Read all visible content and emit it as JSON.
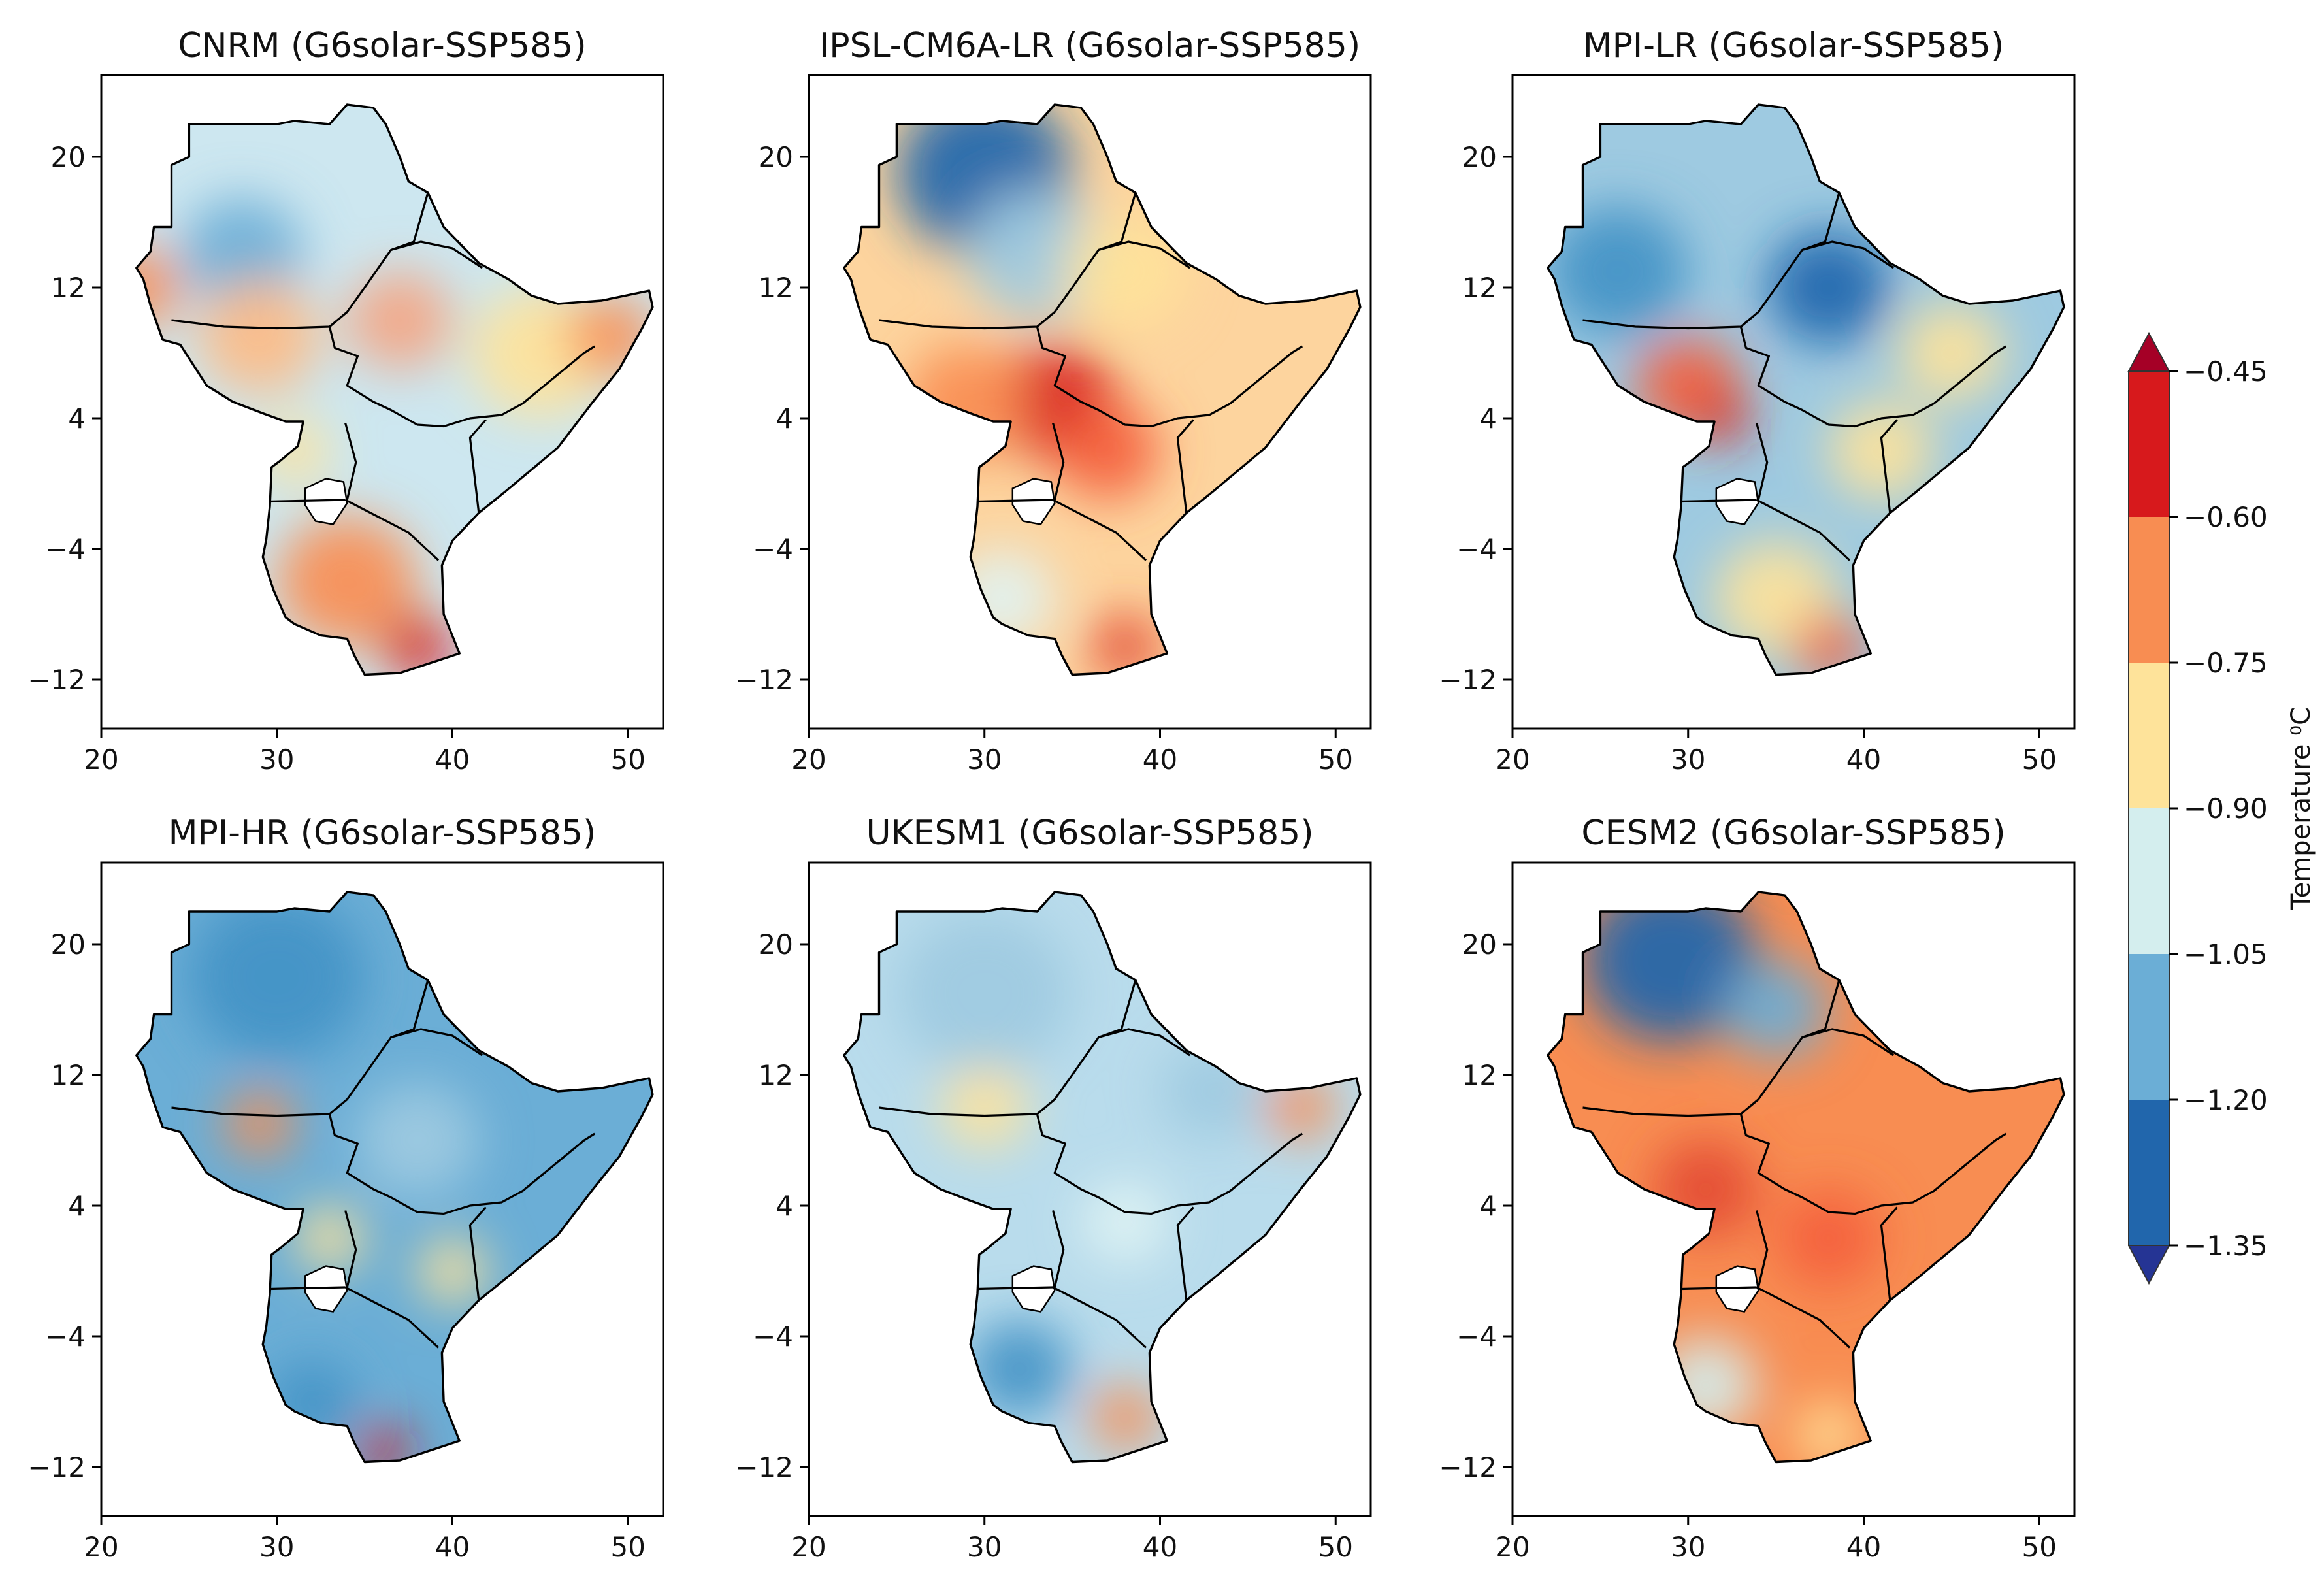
{
  "figure": {
    "variable": "Temperature",
    "unit_label": "Temperature ⁰C",
    "x_ticks": [
      20,
      30,
      40,
      50
    ],
    "y_ticks": [
      20,
      12,
      4,
      -4,
      -12
    ],
    "xlim": [
      20,
      52
    ],
    "ylim": [
      -15,
      25
    ]
  },
  "colorbar": {
    "label": "Temperature ⁰C",
    "levels": [
      -1.35,
      -1.2,
      -1.05,
      -0.9,
      -0.75,
      -0.6,
      -0.45
    ],
    "level_labels": [
      "−1.35",
      "−1.20",
      "−1.05",
      "−0.90",
      "−0.75",
      "−0.60",
      "−0.45"
    ],
    "colors": [
      "#2166ac",
      "#6baed6",
      "#d4eeee",
      "#fee39a",
      "#f88d52",
      "#d7191c"
    ],
    "extend_low_color": "#253494",
    "extend_high_color": "#a50026"
  },
  "chart_data": [
    {
      "type": "heatmap",
      "title": "CNRM (G6solar-SSP585)",
      "xlim": [
        20,
        52
      ],
      "ylim": [
        -15,
        25
      ],
      "xticks": [
        "20",
        "30",
        "40",
        "50"
      ],
      "yticks": [
        "20",
        "12",
        "4",
        "−4",
        "−12"
      ],
      "base_color": "#cde7f0",
      "blobs": [
        {
          "lon": 28,
          "lat": 14,
          "r": 3.5,
          "color": "#6baed6"
        },
        {
          "lon": 22,
          "lat": 12,
          "r": 2.5,
          "color": "#f88d52"
        },
        {
          "lon": 29,
          "lat": 9,
          "r": 3.5,
          "color": "#fdbb84"
        },
        {
          "lon": 37,
          "lat": 10,
          "r": 3,
          "color": "#f4a582"
        },
        {
          "lon": 45,
          "lat": 8,
          "r": 4,
          "color": "#fee39a"
        },
        {
          "lon": 49,
          "lat": 9,
          "r": 2.5,
          "color": "#f88d52"
        },
        {
          "lon": 34,
          "lat": -6,
          "r": 4,
          "color": "#f88d52"
        },
        {
          "lon": 38,
          "lat": -10,
          "r": 2,
          "color": "#d7191c"
        },
        {
          "lon": 31,
          "lat": 2,
          "r": 2,
          "color": "#fee39a"
        }
      ]
    },
    {
      "type": "heatmap",
      "title": "IPSL-CM6A-LR (G6solar-SSP585)",
      "xlim": [
        20,
        52
      ],
      "ylim": [
        -15,
        25
      ],
      "xticks": [
        "20",
        "30",
        "40",
        "50"
      ],
      "yticks": [
        "20",
        "12",
        "4",
        "−4",
        "−12"
      ],
      "base_color": "#fdd49e",
      "blobs": [
        {
          "lon": 30,
          "lat": 19,
          "r": 5,
          "color": "#2166ac"
        },
        {
          "lon": 33,
          "lat": 14,
          "r": 4,
          "color": "#9ecae1"
        },
        {
          "lon": 38,
          "lat": 13,
          "r": 3.5,
          "color": "#fee39a"
        },
        {
          "lon": 34,
          "lat": 5,
          "r": 3.5,
          "color": "#d7191c"
        },
        {
          "lon": 29,
          "lat": 5,
          "r": 3.5,
          "color": "#f88d52"
        },
        {
          "lon": 37,
          "lat": 2,
          "r": 3,
          "color": "#f4603c"
        },
        {
          "lon": 31,
          "lat": -7,
          "r": 3,
          "color": "#e0f3f3"
        },
        {
          "lon": 38,
          "lat": -10,
          "r": 2,
          "color": "#e34a33"
        }
      ]
    },
    {
      "type": "heatmap",
      "title": "MPI-LR (G6solar-SSP585)",
      "xlim": [
        20,
        52
      ],
      "ylim": [
        -15,
        25
      ],
      "xticks": [
        "20",
        "30",
        "40",
        "50"
      ],
      "yticks": [
        "20",
        "12",
        "4",
        "−4",
        "−12"
      ],
      "base_color": "#9ecae1",
      "blobs": [
        {
          "lon": 26,
          "lat": 13,
          "r": 4,
          "color": "#4292c6"
        },
        {
          "lon": 38,
          "lat": 12,
          "r": 3.5,
          "color": "#2166ac"
        },
        {
          "lon": 45,
          "lat": 8,
          "r": 3,
          "color": "#fee39a"
        },
        {
          "lon": 30,
          "lat": 6,
          "r": 3,
          "color": "#f4603c"
        },
        {
          "lon": 32,
          "lat": 4,
          "r": 1.5,
          "color": "#d7191c"
        },
        {
          "lon": 41,
          "lat": 2,
          "r": 3,
          "color": "#fee39a"
        },
        {
          "lon": 35,
          "lat": -7,
          "r": 3.5,
          "color": "#fee39a"
        },
        {
          "lon": 38,
          "lat": -10,
          "r": 2,
          "color": "#f4603c"
        }
      ]
    },
    {
      "type": "heatmap",
      "title": "MPI-HR (G6solar-SSP585)",
      "xlim": [
        20,
        52
      ],
      "ylim": [
        -15,
        25
      ],
      "xticks": [
        "20",
        "30",
        "40",
        "50"
      ],
      "yticks": [
        "20",
        "12",
        "4",
        "−4",
        "−12"
      ],
      "base_color": "#6baed6",
      "blobs": [
        {
          "lon": 30,
          "lat": 18,
          "r": 5,
          "color": "#4292c6"
        },
        {
          "lon": 29,
          "lat": 9,
          "r": 2,
          "color": "#f88d52"
        },
        {
          "lon": 38,
          "lat": 8,
          "r": 3.5,
          "color": "#9ecae1"
        },
        {
          "lon": 33,
          "lat": 2,
          "r": 2,
          "color": "#fee39a"
        },
        {
          "lon": 32,
          "lat": -8,
          "r": 2.5,
          "color": "#4292c6"
        },
        {
          "lon": 36,
          "lat": -11,
          "r": 1.5,
          "color": "#d7191c"
        },
        {
          "lon": 40,
          "lat": 0,
          "r": 2,
          "color": "#fee39a"
        }
      ]
    },
    {
      "type": "heatmap",
      "title": "UKESM1 (G6solar-SSP585)",
      "xlim": [
        20,
        52
      ],
      "ylim": [
        -15,
        25
      ],
      "xticks": [
        "20",
        "30",
        "40",
        "50"
      ],
      "yticks": [
        "20",
        "12",
        "4",
        "−4",
        "−12"
      ],
      "base_color": "#b9dcec",
      "blobs": [
        {
          "lon": 30,
          "lat": 17,
          "r": 5,
          "color": "#9ecae1"
        },
        {
          "lon": 30,
          "lat": 10,
          "r": 2.5,
          "color": "#fee39a"
        },
        {
          "lon": 43,
          "lat": 11,
          "r": 3,
          "color": "#9ecae1"
        },
        {
          "lon": 38,
          "lat": 3,
          "r": 2.5,
          "color": "#e0f3f3"
        },
        {
          "lon": 32,
          "lat": -6,
          "r": 3,
          "color": "#4292c6"
        },
        {
          "lon": 38,
          "lat": -9,
          "r": 2,
          "color": "#f88d52"
        },
        {
          "lon": 48,
          "lat": 10,
          "r": 2,
          "color": "#f88d52"
        }
      ]
    },
    {
      "type": "heatmap",
      "title": "CESM2 (G6solar-SSP585)",
      "xlim": [
        20,
        52
      ],
      "ylim": [
        -15,
        25
      ],
      "xticks": [
        "20",
        "30",
        "40",
        "50"
      ],
      "yticks": [
        "20",
        "12",
        "4",
        "−4",
        "−12"
      ],
      "base_color": "#f88d52",
      "blobs": [
        {
          "lon": 29,
          "lat": 19,
          "r": 5,
          "color": "#2166ac"
        },
        {
          "lon": 35,
          "lat": 16,
          "r": 3,
          "color": "#6baed6"
        },
        {
          "lon": 31,
          "lat": 5,
          "r": 3,
          "color": "#e34a33"
        },
        {
          "lon": 38,
          "lat": 2,
          "r": 3,
          "color": "#f4603c"
        },
        {
          "lon": 31,
          "lat": -7,
          "r": 3,
          "color": "#d4eeee"
        },
        {
          "lon": 38,
          "lat": -10,
          "r": 2,
          "color": "#fee39a"
        }
      ]
    }
  ]
}
